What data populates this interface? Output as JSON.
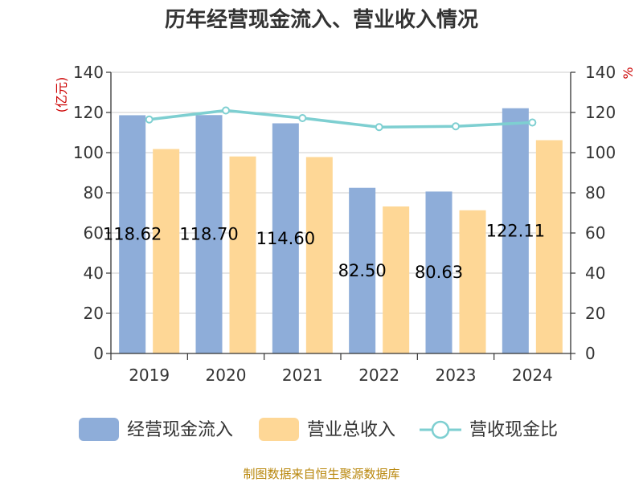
{
  "title": "历年经营现金流入、营业收入情况",
  "source": "制图数据来自恒生聚源数据库",
  "colors": {
    "cash": "#8eadd9",
    "revenue": "#fed796",
    "ratio": "#7ecfd1",
    "unit": "#cc0000",
    "source": "#b8860b"
  },
  "chart_data": {
    "type": "bar",
    "title": "历年经营现金流入、营业收入情况",
    "categories": [
      "2019",
      "2020",
      "2021",
      "2022",
      "2023",
      "2024"
    ],
    "y_left": {
      "label": "(亿元)",
      "ylim": [
        0,
        140
      ],
      "ticks": [
        "0",
        "20",
        "40",
        "60",
        "80",
        "100",
        "120",
        "140"
      ]
    },
    "y_right": {
      "label": "%",
      "ylim": [
        0,
        140
      ],
      "ticks": [
        "0",
        "20",
        "40",
        "60",
        "80",
        "100",
        "120",
        "140"
      ]
    },
    "series": [
      {
        "name": "经营现金流入",
        "type": "bar",
        "axis": "left",
        "values": [
          118.62,
          118.7,
          114.6,
          82.5,
          80.63,
          122.11
        ],
        "labels": [
          "118.62",
          "118.70",
          "114.60",
          "82.50",
          "80.63",
          "122.11"
        ]
      },
      {
        "name": "营业总收入",
        "type": "bar",
        "axis": "left",
        "values": [
          101.8,
          98.1,
          97.8,
          73.2,
          71.3,
          106.2
        ]
      },
      {
        "name": "营收现金比",
        "type": "line",
        "axis": "right",
        "values": [
          116.5,
          121.0,
          117.2,
          112.7,
          113.1,
          115.0
        ]
      }
    ],
    "legend_position": "bottom",
    "grid": true
  }
}
